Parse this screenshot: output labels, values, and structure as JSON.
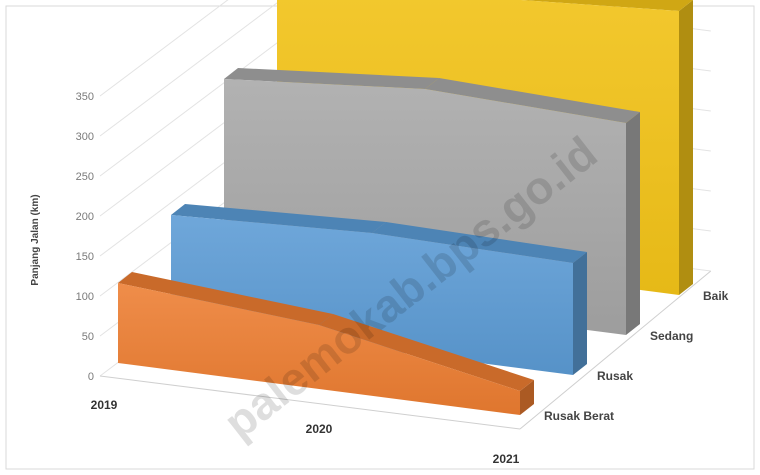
{
  "chart_data": {
    "type": "area",
    "subtype": "3d-area",
    "categories": [
      "2019",
      "2020",
      "2021"
    ],
    "ylabel": "Panjang Jalan (km)",
    "yticks": [
      0,
      50,
      100,
      150,
      200,
      250,
      300,
      350
    ],
    "ylim": [
      0,
      350
    ],
    "grid": true,
    "series": [
      {
        "name": "Baik",
        "values": [
          415,
          340,
          355
        ],
        "color": "#f5c518"
      },
      {
        "name": "Sedang",
        "values": [
          255,
          275,
          265
        ],
        "color": "#a7a7a7"
      },
      {
        "name": "Rusak",
        "values": [
          135,
          145,
          140
        ],
        "color": "#5b9bd5"
      },
      {
        "name": "Rusak Berat",
        "values": [
          100,
          80,
          30
        ],
        "color": "#ed7d31"
      }
    ],
    "watermark": "palemokab.bps.go.id"
  }
}
